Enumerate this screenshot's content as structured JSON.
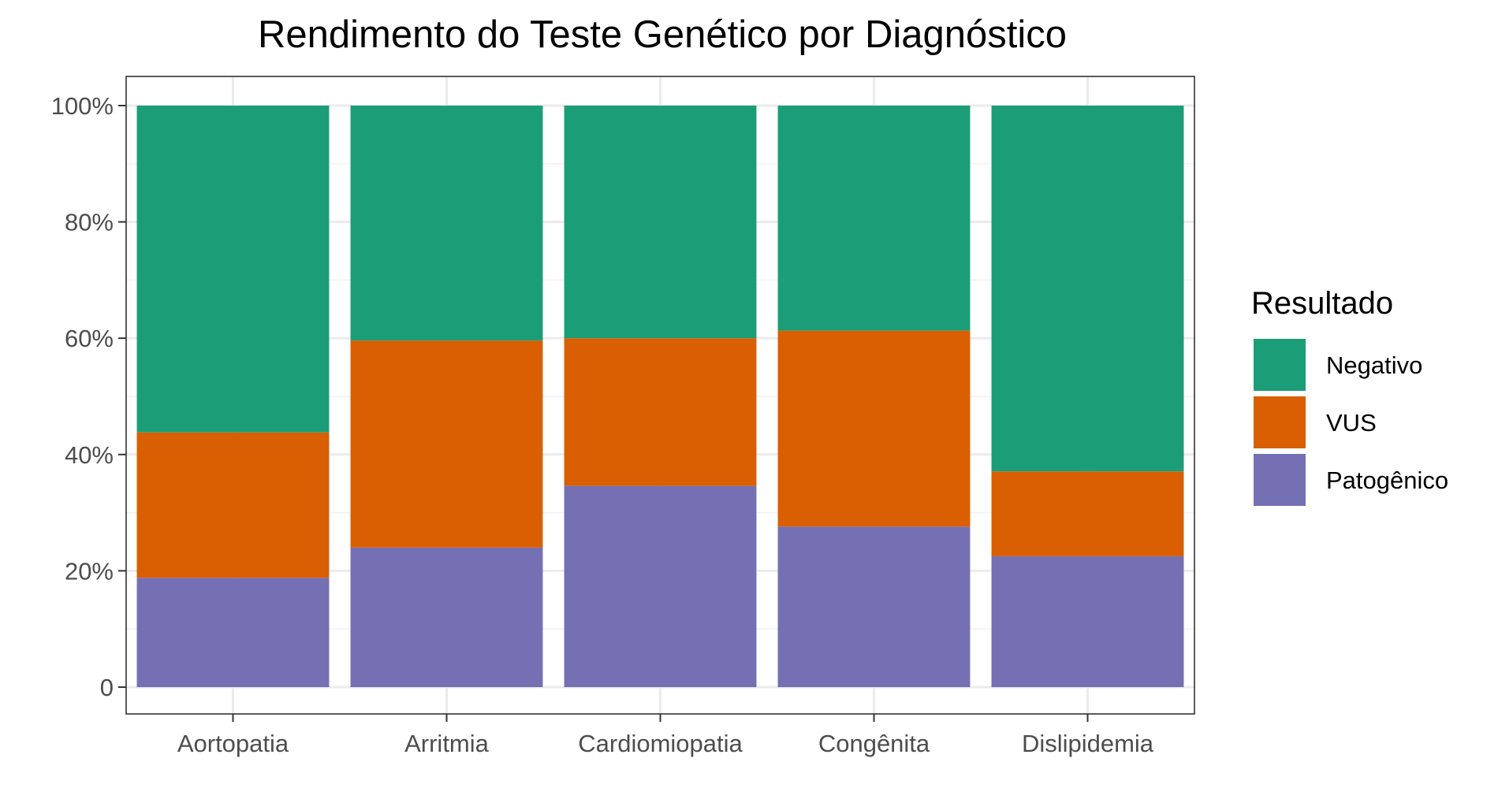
{
  "chart_data": {
    "type": "bar",
    "stacked": true,
    "normalized": true,
    "title": "Rendimento do Teste Genético por Diagnóstico",
    "xlabel": "",
    "ylabel": "",
    "categories": [
      "Aortopatia",
      "Arritmia",
      "Cardiomiopatia",
      "Congênita",
      "Dislipidemia"
    ],
    "series": [
      {
        "name": "Patogênico",
        "color": "#7570B3",
        "values": [
          18.8,
          24.0,
          34.6,
          27.6,
          22.5
        ]
      },
      {
        "name": "VUS",
        "color": "#D95F02",
        "values": [
          25.0,
          35.6,
          25.4,
          33.7,
          14.6
        ]
      },
      {
        "name": "Negativo",
        "color": "#1B9E77",
        "values": [
          56.2,
          40.4,
          40.0,
          38.7,
          62.9
        ]
      }
    ],
    "ylim": [
      0,
      100
    ],
    "yticks": [
      0,
      20,
      40,
      60,
      80,
      100
    ],
    "ytick_labels": [
      "0",
      "20%",
      "40%",
      "60%",
      "80%",
      "100%"
    ],
    "grid": true,
    "legend": {
      "title": "Resultado",
      "position": "right",
      "order": [
        "Negativo",
        "VUS",
        "Patogênico"
      ]
    }
  }
}
